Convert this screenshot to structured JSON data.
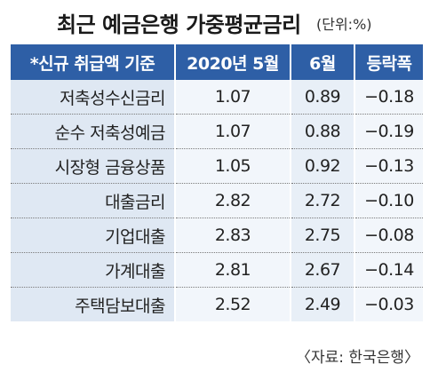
{
  "header": {
    "title": "최근 예금은행 가중평균금리",
    "unit": "(단위:%)"
  },
  "table": {
    "columns": [
      "*신규 취급액 기준",
      "2020년 5월",
      "6월",
      "등락폭"
    ],
    "rows": [
      {
        "label": "저축성수신금리",
        "may": "1.07",
        "jun": "0.89",
        "change": "−0.18"
      },
      {
        "label": "순수 저축성예금",
        "may": "1.07",
        "jun": "0.88",
        "change": "−0.19"
      },
      {
        "label": "시장형 금융상품",
        "may": "1.05",
        "jun": "0.92",
        "change": "−0.13"
      },
      {
        "label": "대출금리",
        "may": "2.82",
        "jun": "2.72",
        "change": "−0.10"
      },
      {
        "label": "기업대출",
        "may": "2.83",
        "jun": "2.75",
        "change": "−0.08"
      },
      {
        "label": "가계대출",
        "may": "2.81",
        "jun": "2.67",
        "change": "−0.14"
      },
      {
        "label": "주택담보대출",
        "may": "2.52",
        "jun": "2.49",
        "change": "−0.03"
      }
    ]
  },
  "footer": {
    "source": "〈자료: 한국은행〉"
  },
  "chart_data": {
    "type": "table",
    "title": "최근 예금은행 가중평균금리",
    "unit": "%",
    "categories": [
      "저축성수신금리",
      "순수 저축성예금",
      "시장형 금융상품",
      "대출금리",
      "기업대출",
      "가계대출",
      "주택담보대출"
    ],
    "series": [
      {
        "name": "2020년 5월",
        "values": [
          1.07,
          1.07,
          1.05,
          2.82,
          2.83,
          2.81,
          2.52
        ]
      },
      {
        "name": "6월",
        "values": [
          0.89,
          0.88,
          0.92,
          2.72,
          2.75,
          2.67,
          2.49
        ]
      },
      {
        "name": "등락폭",
        "values": [
          -0.18,
          -0.19,
          -0.13,
          -0.1,
          -0.08,
          -0.14,
          -0.03
        ]
      }
    ]
  },
  "colors": {
    "header_bg": "#2e5fa6",
    "label_bg": "#dfe8f3",
    "cell_bg": "#f2f6fb"
  }
}
